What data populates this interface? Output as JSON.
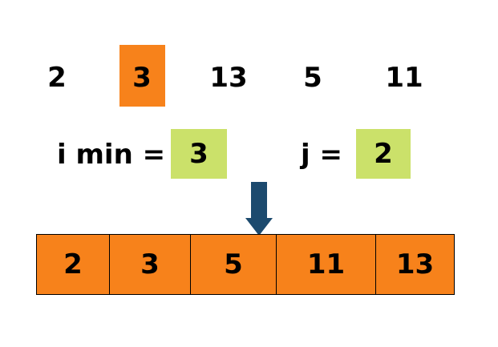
{
  "unsorted_row": [
    "2",
    "3",
    "13",
    "5",
    "11"
  ],
  "i_min": {
    "label": "i min =",
    "value": "3"
  },
  "j": {
    "label": "j =",
    "value": "2"
  },
  "sorted_row": [
    "2",
    "3",
    "5",
    "11",
    "13"
  ],
  "colors": {
    "highlight": "#f7821b",
    "value_box": "#cbe16a",
    "arrow": "#1c4a6e",
    "cell_fill": "#f7821b"
  }
}
